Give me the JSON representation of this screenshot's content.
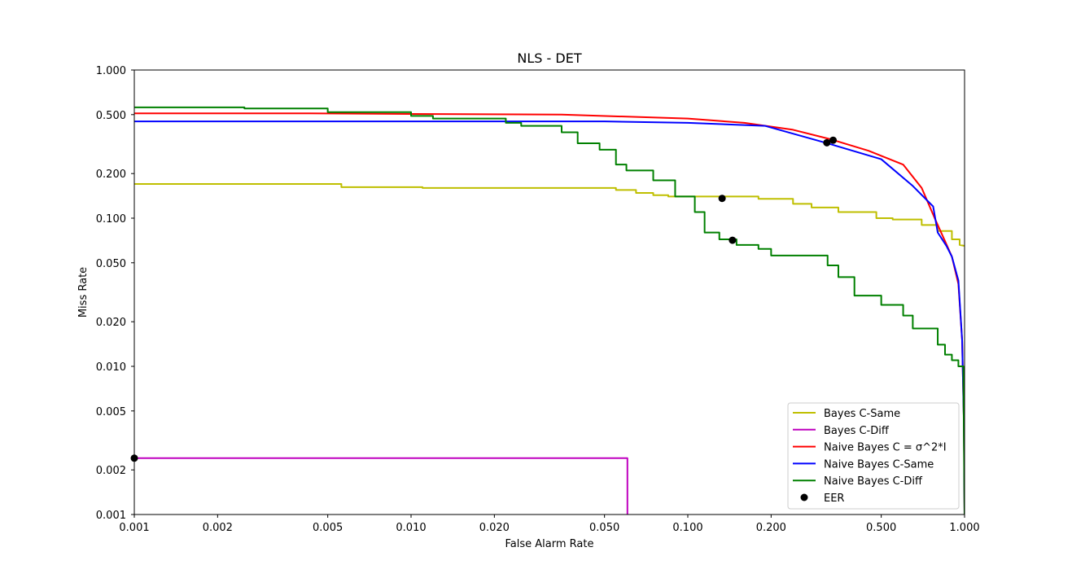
{
  "chart_data": {
    "type": "line",
    "title": "NLS - DET",
    "xlabel": "False Alarm Rate",
    "ylabel": "Miss Rate",
    "xscale": "log",
    "yscale": "log",
    "xlim": [
      0.001,
      1.0
    ],
    "ylim": [
      0.001,
      1.0
    ],
    "xticks": [
      0.001,
      0.002,
      0.005,
      0.01,
      0.02,
      0.05,
      0.1,
      0.2,
      0.5,
      1.0
    ],
    "xtick_labels": [
      "0.001",
      "0.002",
      "0.005",
      "0.010",
      "0.020",
      "0.050",
      "0.100",
      "0.200",
      "0.500",
      "1.000"
    ],
    "yticks": [
      0.001,
      0.002,
      0.005,
      0.01,
      0.02,
      0.05,
      0.1,
      0.2,
      0.5,
      1.0
    ],
    "ytick_labels": [
      "0.001",
      "0.002",
      "0.005",
      "0.010",
      "0.020",
      "0.050",
      "0.100",
      "0.200",
      "0.500",
      "1.000"
    ],
    "grid": false,
    "legend_position": "lower-right",
    "series": [
      {
        "name": "Bayes C-Same",
        "color": "#bfbf00",
        "step": true,
        "x": [
          0.001,
          0.0056,
          0.0056,
          0.011,
          0.011,
          0.055,
          0.055,
          0.065,
          0.065,
          0.075,
          0.075,
          0.085,
          0.085,
          0.1,
          0.1,
          0.18,
          0.18,
          0.24,
          0.24,
          0.28,
          0.28,
          0.35,
          0.35,
          0.48,
          0.48,
          0.55,
          0.55,
          0.7,
          0.7,
          0.8,
          0.8,
          0.9,
          0.9,
          0.96,
          0.96,
          1.0
        ],
        "y": [
          0.17,
          0.17,
          0.162,
          0.162,
          0.16,
          0.16,
          0.155,
          0.155,
          0.148,
          0.148,
          0.143,
          0.143,
          0.14,
          0.14,
          0.14,
          0.14,
          0.135,
          0.135,
          0.125,
          0.125,
          0.118,
          0.118,
          0.11,
          0.11,
          0.1,
          0.1,
          0.098,
          0.098,
          0.09,
          0.09,
          0.082,
          0.082,
          0.072,
          0.072,
          0.066,
          0.065
        ]
      },
      {
        "name": "Bayes C-Diff",
        "color": "#bf00bf",
        "step": true,
        "x": [
          0.001,
          0.0605,
          0.0605
        ],
        "y": [
          0.0024,
          0.0024,
          0.001
        ]
      },
      {
        "name": "Naive Bayes C = σ^2*I",
        "color": "#ff0000",
        "step": false,
        "x": [
          0.001,
          0.004,
          0.01,
          0.035,
          0.1,
          0.16,
          0.24,
          0.33,
          0.45,
          0.6,
          0.7,
          0.78,
          0.85,
          0.9,
          0.95,
          0.98,
          0.995,
          1.0
        ],
        "y": [
          0.51,
          0.51,
          0.505,
          0.5,
          0.47,
          0.44,
          0.395,
          0.34,
          0.285,
          0.23,
          0.16,
          0.1,
          0.07,
          0.055,
          0.036,
          0.015,
          0.004,
          0.001
        ]
      },
      {
        "name": "Naive Bayes C-Same",
        "color": "#0000ff",
        "step": false,
        "x": [
          0.001,
          0.01,
          0.05,
          0.1,
          0.19,
          0.32,
          0.5,
          0.65,
          0.77,
          0.8,
          0.86,
          0.9,
          0.95,
          0.98,
          0.995,
          1.0
        ],
        "y": [
          0.45,
          0.45,
          0.45,
          0.44,
          0.42,
          0.32,
          0.25,
          0.165,
          0.12,
          0.08,
          0.065,
          0.055,
          0.038,
          0.015,
          0.004,
          0.001
        ]
      },
      {
        "name": "Naive Bayes C-Diff",
        "color": "#008000",
        "step": true,
        "x": [
          0.001,
          0.0025,
          0.0025,
          0.005,
          0.005,
          0.01,
          0.01,
          0.012,
          0.012,
          0.022,
          0.022,
          0.025,
          0.025,
          0.035,
          0.035,
          0.04,
          0.04,
          0.048,
          0.048,
          0.055,
          0.055,
          0.06,
          0.06,
          0.075,
          0.075,
          0.09,
          0.09,
          0.106,
          0.106,
          0.115,
          0.115,
          0.13,
          0.13,
          0.15,
          0.15,
          0.18,
          0.18,
          0.2,
          0.2,
          0.32,
          0.32,
          0.35,
          0.35,
          0.4,
          0.4,
          0.5,
          0.5,
          0.6,
          0.6,
          0.65,
          0.65,
          0.8,
          0.8,
          0.85,
          0.85,
          0.9,
          0.9,
          0.95,
          0.95,
          0.99,
          0.99,
          1.0
        ],
        "y": [
          0.56,
          0.56,
          0.55,
          0.55,
          0.52,
          0.52,
          0.49,
          0.49,
          0.47,
          0.47,
          0.44,
          0.44,
          0.42,
          0.42,
          0.38,
          0.38,
          0.32,
          0.32,
          0.29,
          0.29,
          0.23,
          0.23,
          0.21,
          0.21,
          0.18,
          0.18,
          0.14,
          0.14,
          0.11,
          0.11,
          0.08,
          0.08,
          0.072,
          0.072,
          0.066,
          0.066,
          0.062,
          0.062,
          0.056,
          0.056,
          0.048,
          0.048,
          0.04,
          0.04,
          0.03,
          0.03,
          0.026,
          0.026,
          0.022,
          0.022,
          0.018,
          0.018,
          0.014,
          0.014,
          0.012,
          0.012,
          0.011,
          0.011,
          0.01,
          0.01,
          0.009,
          0.001
        ]
      },
      {
        "name": "EER",
        "color": "#000000",
        "marker": "circle",
        "scatter": true,
        "x": [
          0.001,
          0.133,
          0.145,
          0.318,
          0.335
        ],
        "y": [
          0.0024,
          0.136,
          0.071,
          0.323,
          0.336
        ]
      }
    ]
  }
}
